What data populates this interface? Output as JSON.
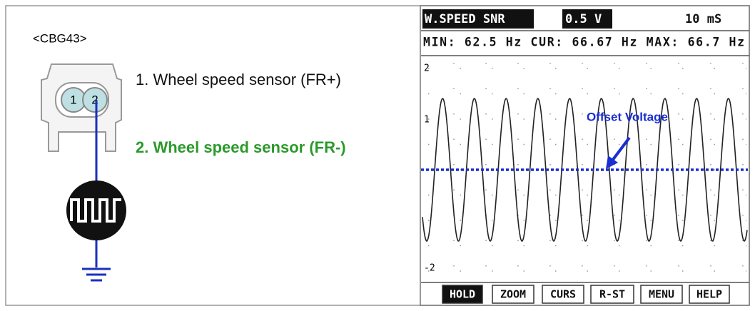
{
  "connector": {
    "label": "<CBG43>",
    "pins": [
      "1",
      "2"
    ]
  },
  "pin_descriptions": [
    "1. Wheel speed sensor (FR+)",
    "2. Wheel speed sensor (FR-)"
  ],
  "scope": {
    "header": {
      "channel": "W.SPEED SNR",
      "volts_per_div": "0.5 V",
      "time_per_div": "10 mS"
    },
    "readout": "MIN: 62.5 Hz CUR: 66.67 Hz MAX: 66.7 Hz",
    "y_labels": [
      "2",
      "1",
      "-2"
    ],
    "annotation": "Offset Voltage",
    "buttons": [
      "HOLD",
      "ZOOM",
      "CURS",
      "R-ST",
      "MENU",
      "HELP"
    ]
  }
}
